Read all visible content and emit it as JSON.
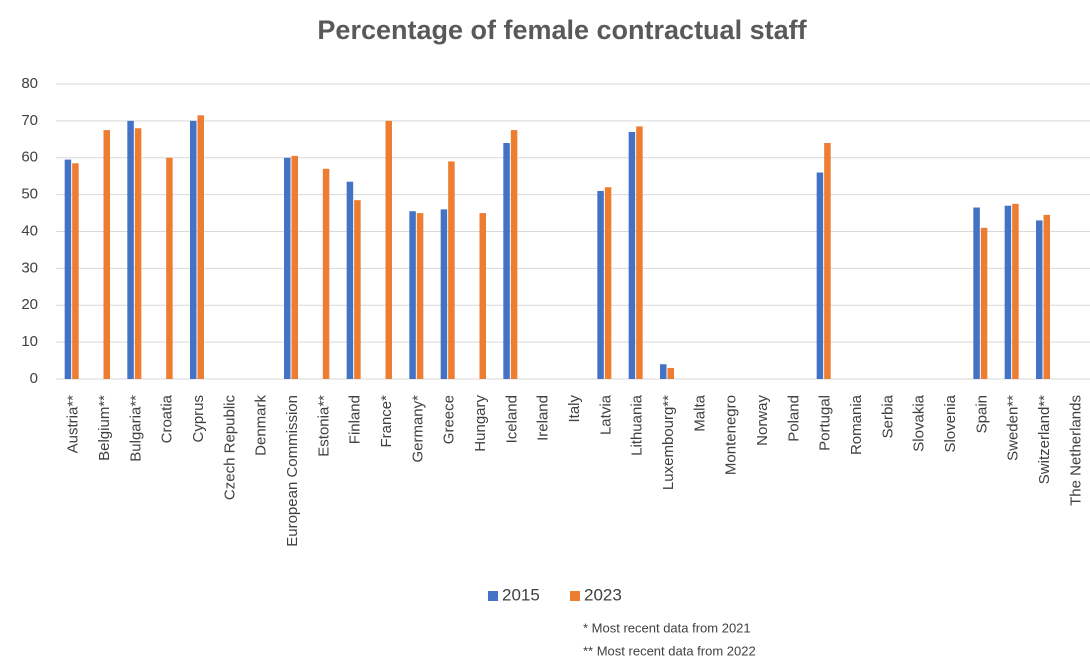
{
  "chart_data": {
    "type": "bar",
    "title": "Percentage of female contractual staff",
    "categories": [
      "Austria**",
      "Belgium**",
      "Bulgaria**",
      "Croatia",
      "Cyprus",
      "Czech Republic",
      "Denmark",
      "European Commission",
      "Estonia**",
      "Finland",
      "France*",
      "Germany*",
      "Greece",
      "Hungary",
      "Iceland",
      "Ireland",
      "Italy",
      "Latvia",
      "Lithuania",
      "Luxembourg**",
      "Malta",
      "Montenegro",
      "Norway",
      "Poland",
      "Portugal",
      "Romania",
      "Serbia",
      "Slovakia",
      "Slovenia",
      "Spain",
      "Sweden**",
      "Switzerland**",
      "The Netherlands"
    ],
    "series": [
      {
        "name": "2015",
        "color": "#4472c4",
        "values": [
          59.5,
          null,
          70,
          null,
          70,
          null,
          null,
          60,
          null,
          53.5,
          null,
          45.5,
          46,
          null,
          64,
          null,
          null,
          51,
          67,
          4,
          null,
          null,
          null,
          null,
          56,
          null,
          null,
          null,
          null,
          46.5,
          47,
          43,
          null
        ]
      },
      {
        "name": "2023",
        "color": "#ed7d31",
        "values": [
          58.5,
          67.5,
          68,
          60,
          71.5,
          null,
          null,
          60.5,
          57,
          48.5,
          70,
          45,
          59,
          45,
          67.5,
          null,
          null,
          52,
          68.5,
          3,
          null,
          null,
          null,
          null,
          64,
          null,
          null,
          null,
          null,
          41,
          47.5,
          44.5,
          null
        ]
      }
    ],
    "ylim": [
      0,
      80
    ],
    "yticks": [
      0,
      10,
      20,
      30,
      40,
      50,
      60,
      70,
      80
    ],
    "grid": true,
    "legend": "bottom",
    "notes": [
      "* Most recent data from 2021",
      "** Most recent  data from 2022"
    ]
  }
}
